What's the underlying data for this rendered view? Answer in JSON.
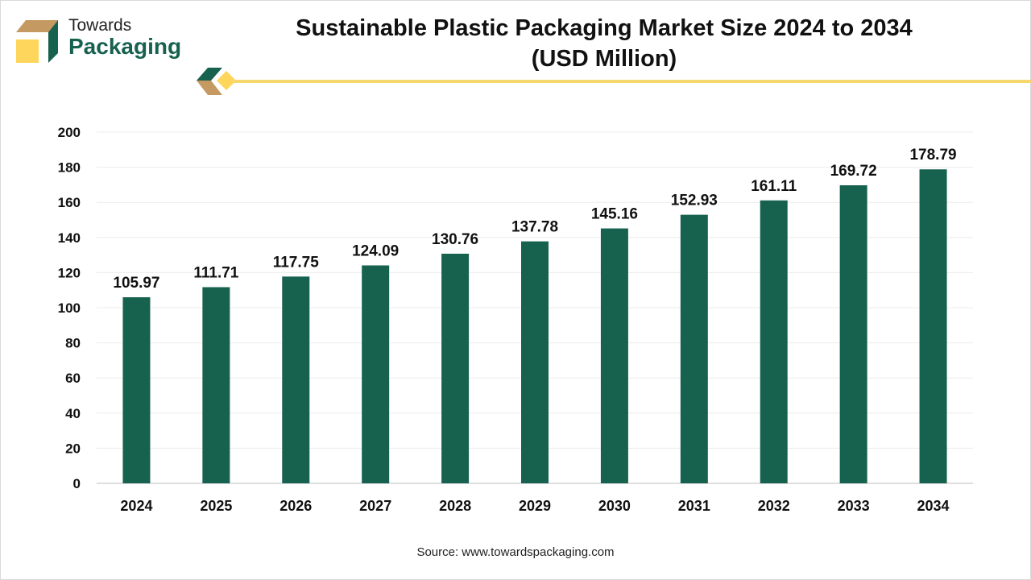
{
  "brand": {
    "line1": "Towards",
    "line2": "Packaging"
  },
  "source": "Source: www.towardspackaging.com",
  "colors": {
    "bar": "#17614f",
    "accent_line": "#f5d76e",
    "brand_green": "#17614f",
    "brand_tan": "#c49a62",
    "brand_yellow": "#fdd65b"
  },
  "chart_data": {
    "type": "bar",
    "title": "Sustainable Plastic Packaging Market Size 2024 to 2034",
    "subtitle": "(USD Million)",
    "categories": [
      "2024",
      "2025",
      "2026",
      "2027",
      "2028",
      "2029",
      "2030",
      "2031",
      "2032",
      "2033",
      "2034"
    ],
    "values": [
      105.97,
      111.71,
      117.75,
      124.09,
      130.76,
      137.78,
      145.16,
      152.93,
      161.11,
      169.72,
      178.79
    ],
    "labels": [
      "105.97",
      "111.71",
      "117.75",
      "124.09",
      "130.76",
      "137.78",
      "145.16",
      "152.93",
      "161.11",
      "169.72",
      "178.79"
    ],
    "yticks": [
      "0",
      "20",
      "40",
      "60",
      "80",
      "100",
      "120",
      "140",
      "160",
      "180",
      "200"
    ],
    "ylim": [
      0,
      200
    ],
    "grid": true,
    "xlabel": "",
    "ylabel": ""
  }
}
